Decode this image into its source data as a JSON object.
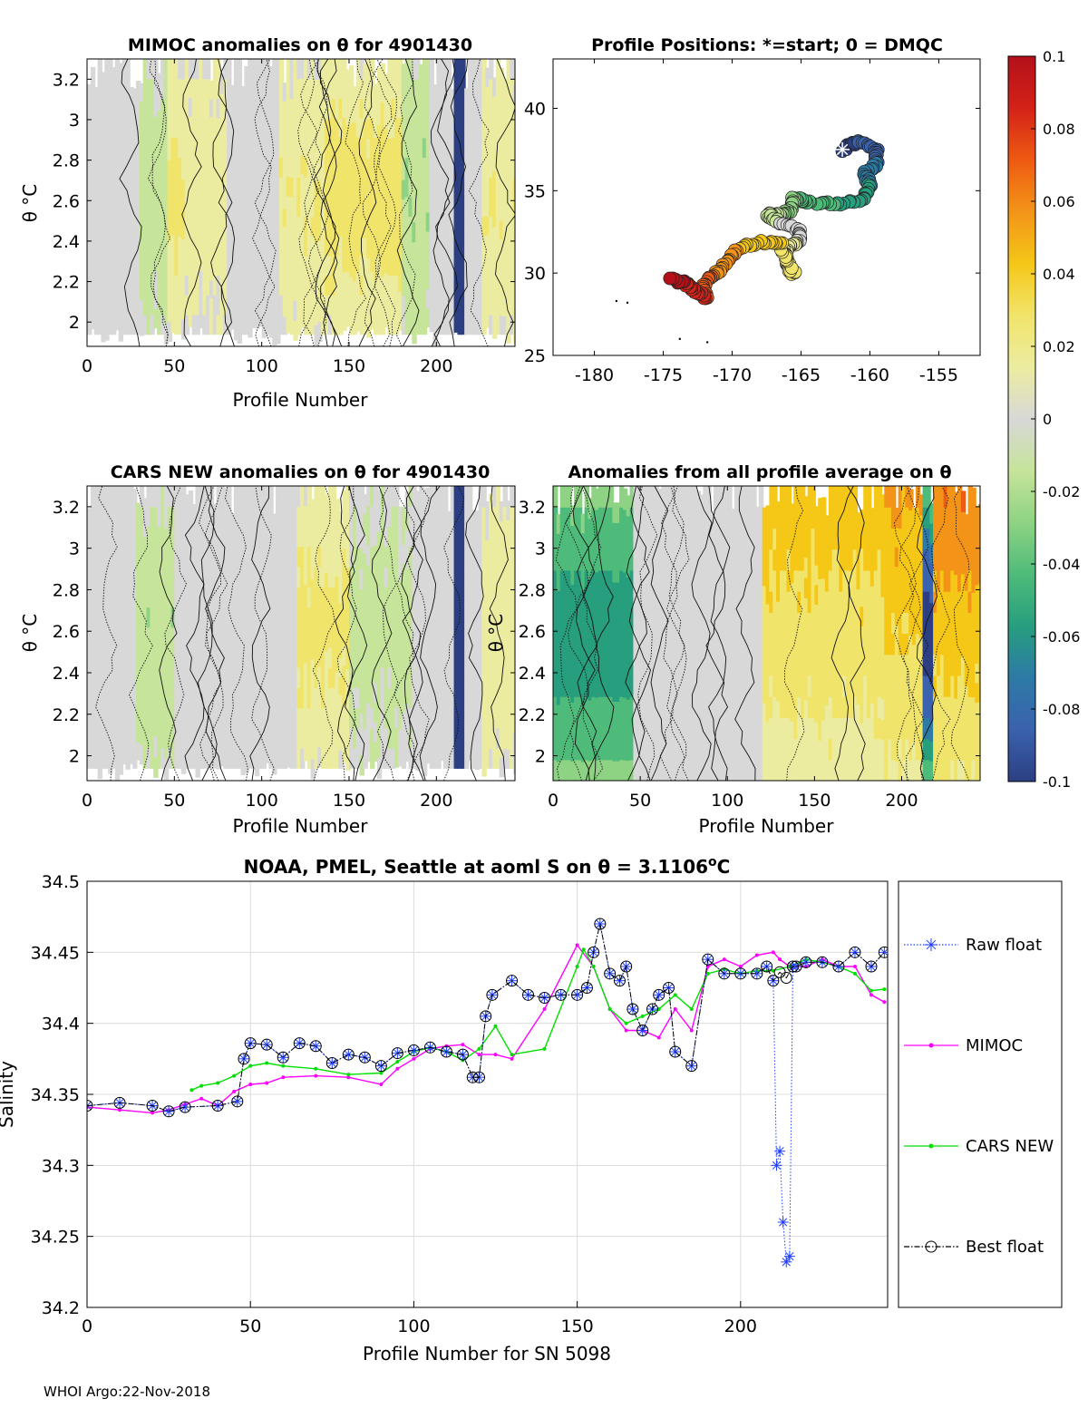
{
  "footer": "WHOI Argo:22-Nov-2018",
  "colors": {
    "raw": "#1f3fff",
    "mimoc": "#ff00ff",
    "cars": "#00e000",
    "best": "#000000",
    "contour": "#111111",
    "gray": "#d6d6d6",
    "blue_band": "#355a9a"
  },
  "colorbar": {
    "ticks": [
      "0.1",
      "0.08",
      "0.06",
      "0.04",
      "0.02",
      "0",
      "-0.02",
      "-0.04",
      "-0.06",
      "-0.08",
      "-0.1"
    ],
    "stops": [
      "#b4101a",
      "#d32218",
      "#ee5a12",
      "#f39418",
      "#f5c717",
      "#f1e46a",
      "#ececa0",
      "#d8d8d8",
      "#c6e49a",
      "#8ed383",
      "#4fbb7a",
      "#279e7e",
      "#2d7aa6",
      "#3a62ad",
      "#2c3f83"
    ]
  },
  "panels": {
    "mimoc": {
      "title": "MIMOC anomalies on θ  for 4901430",
      "xlabel": "Profile Number",
      "ylabel": "θ °C",
      "xticks": [
        "0",
        "50",
        "100",
        "150",
        "200"
      ],
      "yticks": [
        "3.2",
        "3",
        "2.8",
        "2.6",
        "2.4",
        "2.2",
        "2"
      ]
    },
    "positions": {
      "title": "Profile Positions: *=start; 0 = DMQC",
      "xticks": [
        "-180",
        "-175",
        "-170",
        "-165",
        "-160",
        "-155"
      ],
      "yticks": [
        "40",
        "35",
        "30",
        "25"
      ]
    },
    "cars": {
      "title": "CARS NEW anomalies on θ for 4901430",
      "xlabel": "Profile Number",
      "ylabel": "θ °C",
      "xticks": [
        "0",
        "50",
        "100",
        "150",
        "200"
      ],
      "yticks": [
        "3.2",
        "3",
        "2.8",
        "2.6",
        "2.4",
        "2.2",
        "2"
      ]
    },
    "avg": {
      "title": "Anomalies from all profile average on θ",
      "xlabel": "Profile Number",
      "ylabel": "θ °C",
      "xticks": [
        "0",
        "50",
        "100",
        "150",
        "200"
      ],
      "yticks": [
        "3.2",
        "3",
        "2.8",
        "2.6",
        "2.4",
        "2.2",
        "2"
      ]
    }
  },
  "chart_data": [
    {
      "type": "heatmap",
      "title": "MIMOC anomalies on θ  for 4901430",
      "xlabel": "Profile Number",
      "ylabel": "θ °C",
      "xlim": [
        0,
        245
      ],
      "ylim": [
        1.88,
        3.3
      ],
      "clim": [
        -0.1,
        0.1
      ],
      "cell_anomalies": [
        {
          "x": [
            0,
            30
          ],
          "value": 0.0
        },
        {
          "x": [
            30,
            45
          ],
          "value": -0.015
        },
        {
          "x": [
            45,
            55
          ],
          "value": 0.025
        },
        {
          "x": [
            55,
            80
          ],
          "value": 0.015
        },
        {
          "x": [
            80,
            110
          ],
          "value": 0.002
        },
        {
          "x": [
            110,
            135
          ],
          "value": 0.02
        },
        {
          "x": [
            135,
            180
          ],
          "value": 0.028
        },
        {
          "x": [
            180,
            195
          ],
          "value": -0.02
        },
        {
          "x": [
            210,
            216
          ],
          "value": -0.1
        },
        {
          "x": [
            225,
            245
          ],
          "value": 0.02
        }
      ]
    },
    {
      "type": "scatter",
      "title": "Profile Positions: *=start; 0 = DMQC",
      "xlim": [
        -183,
        -152
      ],
      "ylim": [
        25,
        43
      ],
      "start": {
        "lon": -162,
        "lat": 37.5
      },
      "track": [
        {
          "lon": -162.0,
          "lat": 37.5
        },
        {
          "lon": -161.0,
          "lat": 38.0
        },
        {
          "lon": -159.5,
          "lat": 37.6
        },
        {
          "lon": -159.5,
          "lat": 36.6
        },
        {
          "lon": -160.4,
          "lat": 36.0
        },
        {
          "lon": -160.0,
          "lat": 35.3
        },
        {
          "lon": -160.4,
          "lat": 34.5
        },
        {
          "lon": -162.5,
          "lat": 34.2
        },
        {
          "lon": -164.5,
          "lat": 34.3
        },
        {
          "lon": -165.5,
          "lat": 34.6
        },
        {
          "lon": -165.8,
          "lat": 33.8
        },
        {
          "lon": -166.5,
          "lat": 33.5
        },
        {
          "lon": -167.4,
          "lat": 33.6
        },
        {
          "lon": -166.6,
          "lat": 33.1
        },
        {
          "lon": -165.0,
          "lat": 32.5
        },
        {
          "lon": -165.3,
          "lat": 31.8
        },
        {
          "lon": -166.2,
          "lat": 31.4
        },
        {
          "lon": -166.0,
          "lat": 30.5
        },
        {
          "lon": -165.5,
          "lat": 29.9
        },
        {
          "lon": -166.5,
          "lat": 31.8
        },
        {
          "lon": -167.8,
          "lat": 31.9
        },
        {
          "lon": -169.5,
          "lat": 31.5
        },
        {
          "lon": -170.5,
          "lat": 30.6
        },
        {
          "lon": -171.3,
          "lat": 29.8
        },
        {
          "lon": -172.2,
          "lat": 29.2
        },
        {
          "lon": -171.8,
          "lat": 28.5
        },
        {
          "lon": -172.8,
          "lat": 29.0
        },
        {
          "lon": -173.4,
          "lat": 29.4
        },
        {
          "lon": -174.5,
          "lat": 29.6
        }
      ],
      "small_points": [
        {
          "lon": -178.4,
          "lat": 28.3
        },
        {
          "lon": -177.6,
          "lat": 28.2
        },
        {
          "lon": -173.8,
          "lat": 26.0
        },
        {
          "lon": -171.8,
          "lat": 25.8
        }
      ]
    },
    {
      "type": "heatmap",
      "title": "CARS NEW anomalies on θ for 4901430",
      "xlabel": "Profile Number",
      "ylabel": "θ °C",
      "xlim": [
        0,
        245
      ],
      "ylim": [
        1.88,
        3.3
      ],
      "clim": [
        -0.1,
        0.1
      ],
      "cell_anomalies": [
        {
          "x": [
            0,
            28
          ],
          "value": 0.0
        },
        {
          "x": [
            28,
            50
          ],
          "value": -0.018
        },
        {
          "x": [
            50,
            120
          ],
          "value": 0.0
        },
        {
          "x": [
            120,
            150
          ],
          "value": 0.025
        },
        {
          "x": [
            150,
            185
          ],
          "value": -0.012
        },
        {
          "x": [
            210,
            216
          ],
          "value": -0.1
        },
        {
          "x": [
            225,
            245
          ],
          "value": 0.018
        }
      ]
    },
    {
      "type": "heatmap",
      "title": "Anomalies from all profile average on θ",
      "xlabel": "Profile Number",
      "ylabel": "θ °C",
      "xlim": [
        0,
        245
      ],
      "ylim": [
        1.88,
        3.3
      ],
      "clim": [
        -0.1,
        0.1
      ],
      "cell_anomalies": [
        {
          "x": [
            0,
            45
          ],
          "value": -0.06
        },
        {
          "x": [
            45,
            120
          ],
          "value": 0.0
        },
        {
          "x": [
            120,
            190
          ],
          "value": 0.045
        },
        {
          "x": [
            190,
            212
          ],
          "value": 0.055
        },
        {
          "x": [
            212,
            217
          ],
          "value": -0.1
        },
        {
          "x": [
            217,
            245
          ],
          "value": 0.065
        }
      ]
    },
    {
      "type": "line",
      "title": "NOAA, PMEL, Seattle at aoml S on θ = 3.1106",
      "title_super": "o",
      "title_suffix": "C",
      "xlabel": "Profile Number for SN 5098",
      "ylabel": "Salinity",
      "xlim": [
        0,
        245
      ],
      "ylim": [
        34.2,
        34.5
      ],
      "xticks": [
        "0",
        "50",
        "100",
        "150",
        "200"
      ],
      "yticks": [
        "34.5",
        "34.45",
        "34.4",
        "34.35",
        "34.3",
        "34.25",
        "34.2"
      ],
      "grid": true,
      "legend_position": "right-outside",
      "series": [
        {
          "name": "Raw float",
          "x": [
            0,
            10,
            20,
            25,
            30,
            40,
            46,
            48,
            50,
            55,
            60,
            65,
            70,
            75,
            80,
            85,
            90,
            95,
            100,
            105,
            110,
            115,
            118,
            120,
            122,
            124,
            130,
            135,
            140,
            145,
            150,
            153,
            155,
            157,
            160,
            163,
            165,
            167,
            170,
            173,
            175,
            178,
            180,
            185,
            190,
            195,
            200,
            205,
            208,
            210,
            211,
            212,
            213,
            214,
            215,
            216,
            217,
            220,
            225,
            230,
            235,
            240,
            244
          ],
          "y": [
            34.342,
            34.344,
            34.342,
            34.338,
            34.341,
            34.342,
            34.345,
            34.375,
            34.386,
            34.385,
            34.376,
            34.386,
            34.384,
            34.372,
            34.378,
            34.376,
            34.37,
            34.379,
            34.381,
            34.383,
            34.38,
            34.378,
            34.362,
            34.362,
            34.405,
            34.42,
            34.43,
            34.42,
            34.418,
            34.42,
            34.42,
            34.425,
            34.45,
            34.47,
            34.435,
            34.43,
            34.44,
            34.41,
            34.395,
            34.41,
            34.42,
            34.425,
            34.38,
            34.37,
            34.445,
            34.435,
            34.435,
            34.435,
            34.44,
            34.43,
            34.3,
            34.31,
            34.26,
            34.232,
            34.236,
            34.44,
            34.44,
            34.443,
            34.443,
            34.44,
            34.45,
            34.44,
            34.45
          ]
        },
        {
          "name": "MIMOC",
          "x": [
            0,
            10,
            20,
            25,
            30,
            35,
            40,
            45,
            50,
            55,
            60,
            70,
            80,
            90,
            95,
            100,
            105,
            110,
            115,
            120,
            125,
            130,
            140,
            150,
            155,
            160,
            165,
            170,
            175,
            180,
            185,
            190,
            195,
            200,
            205,
            210,
            212,
            215,
            220,
            225,
            230,
            235,
            240,
            244
          ],
          "y": [
            34.341,
            34.339,
            34.337,
            34.339,
            34.343,
            34.347,
            34.342,
            34.352,
            34.357,
            34.358,
            34.362,
            34.363,
            34.362,
            34.357,
            34.368,
            34.375,
            34.382,
            34.384,
            34.385,
            34.378,
            34.378,
            34.375,
            34.41,
            34.455,
            34.44,
            34.41,
            34.395,
            34.395,
            34.39,
            34.41,
            34.395,
            34.44,
            34.445,
            34.44,
            34.448,
            34.45,
            34.445,
            34.44,
            34.44,
            34.445,
            34.44,
            34.44,
            34.42,
            34.415
          ]
        },
        {
          "name": "CARS NEW",
          "x": [
            32,
            35,
            40,
            45,
            50,
            55,
            60,
            70,
            80,
            90,
            95,
            100,
            105,
            110,
            115,
            120,
            125,
            130,
            140,
            150,
            152,
            155,
            160,
            165,
            170,
            175,
            180,
            185,
            190,
            195,
            200,
            205,
            210,
            215,
            220,
            225,
            230,
            235,
            240,
            244
          ],
          "y": [
            34.353,
            34.356,
            34.358,
            34.363,
            34.37,
            34.372,
            34.37,
            34.368,
            34.364,
            34.365,
            34.373,
            34.38,
            34.383,
            34.38,
            34.374,
            34.382,
            34.398,
            34.378,
            34.382,
            34.44,
            34.452,
            34.44,
            34.41,
            34.4,
            34.405,
            34.41,
            34.42,
            34.41,
            34.435,
            34.438,
            34.435,
            34.437,
            34.437,
            34.44,
            34.445,
            34.443,
            34.44,
            34.435,
            34.423,
            34.424
          ]
        },
        {
          "name": "Best float",
          "x": [
            0,
            10,
            20,
            25,
            30,
            40,
            46,
            48,
            50,
            55,
            60,
            65,
            70,
            75,
            80,
            85,
            90,
            95,
            100,
            105,
            110,
            115,
            118,
            120,
            122,
            124,
            130,
            135,
            140,
            145,
            150,
            153,
            155,
            157,
            160,
            163,
            165,
            167,
            170,
            173,
            175,
            178,
            180,
            185,
            190,
            195,
            200,
            205,
            208,
            210,
            212,
            214,
            216,
            217,
            220,
            225,
            230,
            235,
            240,
            244
          ],
          "y": [
            34.342,
            34.344,
            34.342,
            34.338,
            34.341,
            34.342,
            34.345,
            34.375,
            34.386,
            34.385,
            34.376,
            34.386,
            34.384,
            34.372,
            34.378,
            34.376,
            34.37,
            34.379,
            34.381,
            34.383,
            34.38,
            34.378,
            34.362,
            34.362,
            34.405,
            34.42,
            34.43,
            34.42,
            34.418,
            34.42,
            34.42,
            34.425,
            34.45,
            34.47,
            34.435,
            34.43,
            34.44,
            34.41,
            34.395,
            34.41,
            34.42,
            34.425,
            34.38,
            34.37,
            34.445,
            34.435,
            34.435,
            34.435,
            34.44,
            34.43,
            34.436,
            34.432,
            34.44,
            34.44,
            34.443,
            34.443,
            34.44,
            34.45,
            34.44,
            34.45
          ]
        }
      ]
    }
  ]
}
